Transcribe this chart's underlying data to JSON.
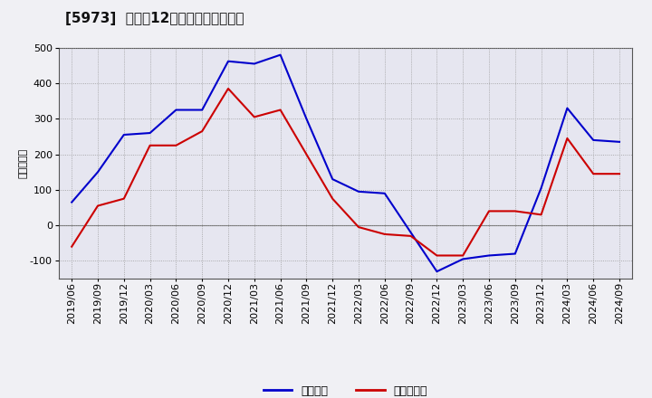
{
  "title": "[5973]  利益だ12か月移動合計の推移",
  "ylabel": "（百万円）",
  "background_color": "#f0f0f0",
  "plot_background": "#e8e8f0",
  "grid_color": "#aaaaaa",
  "x_labels": [
    "2019/06",
    "2019/09",
    "2019/12",
    "2020/03",
    "2020/06",
    "2020/09",
    "2020/12",
    "2021/03",
    "2021/06",
    "2021/09",
    "2021/12",
    "2022/03",
    "2022/06",
    "2022/09",
    "2022/12",
    "2023/03",
    "2023/06",
    "2023/09",
    "2023/12",
    "2024/03",
    "2024/06",
    "2024/09"
  ],
  "keijo_rieki": [
    65,
    150,
    255,
    260,
    325,
    325,
    462,
    455,
    480,
    300,
    130,
    95,
    90,
    -20,
    -130,
    -95,
    -85,
    -80,
    105,
    330,
    240,
    235
  ],
  "junsui_rieki": [
    -60,
    55,
    75,
    225,
    225,
    265,
    385,
    305,
    325,
    200,
    75,
    -5,
    -25,
    -30,
    -85,
    -85,
    40,
    40,
    30,
    245,
    145,
    145
  ],
  "ylim": [
    -150,
    500
  ],
  "yticks": [
    -100,
    0,
    100,
    200,
    300,
    400,
    500
  ],
  "line_color_keijo": "#0000cc",
  "line_color_junsui": "#cc0000",
  "legend_keijo": "経常利益",
  "legend_junsui": "当期純利益",
  "title_fontsize": 11,
  "axis_fontsize": 8,
  "legend_fontsize": 9
}
